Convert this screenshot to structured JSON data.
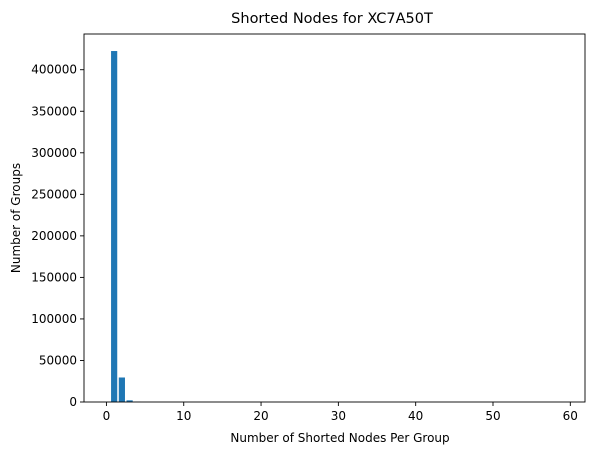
{
  "chart_data": {
    "type": "bar",
    "title": "Shorted Nodes for XC7A50T",
    "xlabel": "Number of Shorted Nodes Per Group",
    "ylabel": "Number of Groups",
    "x": [
      1,
      2,
      3,
      4
    ],
    "values": [
      422500,
      29500,
      2000,
      300
    ],
    "xlim": [
      -2.9,
      61.9
    ],
    "ylim": [
      0,
      443000
    ],
    "xticks": [
      0,
      10,
      20,
      30,
      40,
      50,
      60
    ],
    "xtick_labels": [
      "0",
      "10",
      "20",
      "30",
      "40",
      "50",
      "60"
    ],
    "yticks": [
      0,
      50000,
      100000,
      150000,
      200000,
      250000,
      300000,
      350000,
      400000
    ],
    "ytick_labels": [
      "0",
      "50000",
      "100000",
      "150000",
      "200000",
      "250000",
      "300000",
      "350000",
      "400000"
    ],
    "grid": false,
    "bar_color": "#1f77b4"
  }
}
